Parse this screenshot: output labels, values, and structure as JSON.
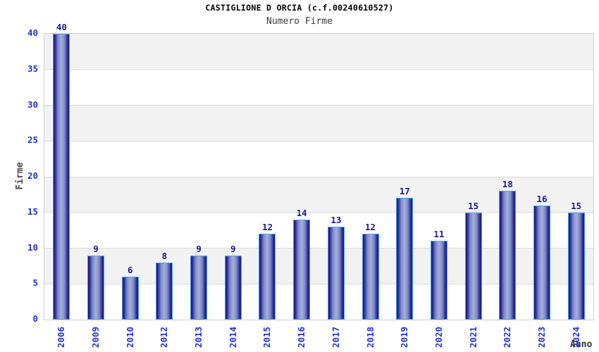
{
  "chart_data": {
    "type": "bar",
    "title": "CASTIGLIONE D ORCIA (c.f.00240610527)",
    "subtitle": "Numero Firme",
    "xlabel": "Anno",
    "ylabel": "Firme",
    "categories": [
      "2006",
      "2009",
      "2010",
      "2012",
      "2013",
      "2014",
      "2015",
      "2016",
      "2017",
      "2018",
      "2019",
      "2020",
      "2021",
      "2022",
      "2023",
      "2024"
    ],
    "values": [
      40,
      9,
      6,
      8,
      9,
      9,
      12,
      14,
      13,
      12,
      17,
      11,
      15,
      18,
      16,
      15
    ],
    "ylim": [
      0,
      40
    ],
    "yticks": [
      0,
      5,
      10,
      15,
      20,
      25,
      30,
      35,
      40
    ],
    "grid": "horizontal gridlines every 5 units with alternating gray/white bands",
    "legend": "none",
    "bar_value_labels": true,
    "colors": {
      "bar_edge": "#16167c",
      "bar_mid": "#2d2d97",
      "bar_light": "#7b87c6",
      "bar_center": "#a6b0dc",
      "bar_stroke": "#4da3f0",
      "value_label": "#1c1c8c",
      "tick_label": "#2233cc",
      "band_gray": "#f2f2f2",
      "gridline": "#dadada",
      "plot_border": "#cfcfcf",
      "title_color": "#000000",
      "subtitle_color": "#3d3d3d",
      "axis_title_color": "#4a4a4a"
    }
  }
}
